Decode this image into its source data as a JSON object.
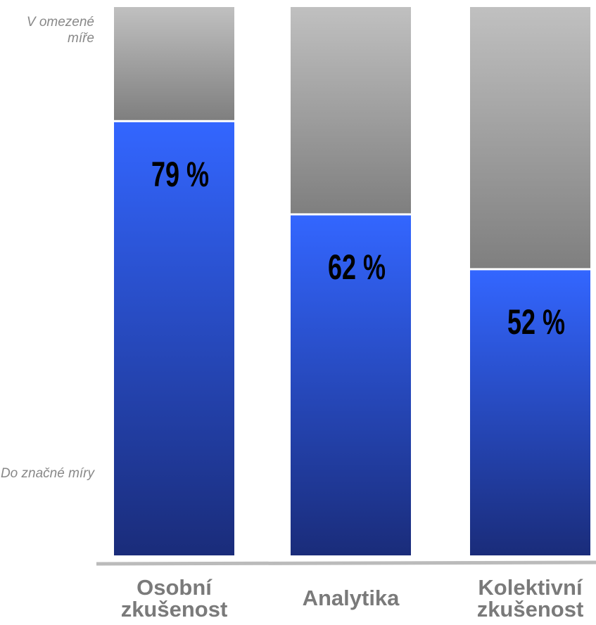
{
  "chart_data": {
    "type": "stacked_bar",
    "categories": [
      "Osobní zkušenost",
      "Analytika",
      "Kolektivní zkušenost"
    ],
    "series": [
      {
        "name": "Do značné míry",
        "color": "#3366ff",
        "values": [
          79,
          62,
          52
        ],
        "value_labels": [
          "79 %",
          "62 %",
          "52 %"
        ]
      },
      {
        "name": "V omezené míře",
        "color": "#c0c0c0",
        "values": [
          21,
          38,
          48
        ]
      }
    ],
    "ylim": [
      0,
      100
    ]
  }
}
